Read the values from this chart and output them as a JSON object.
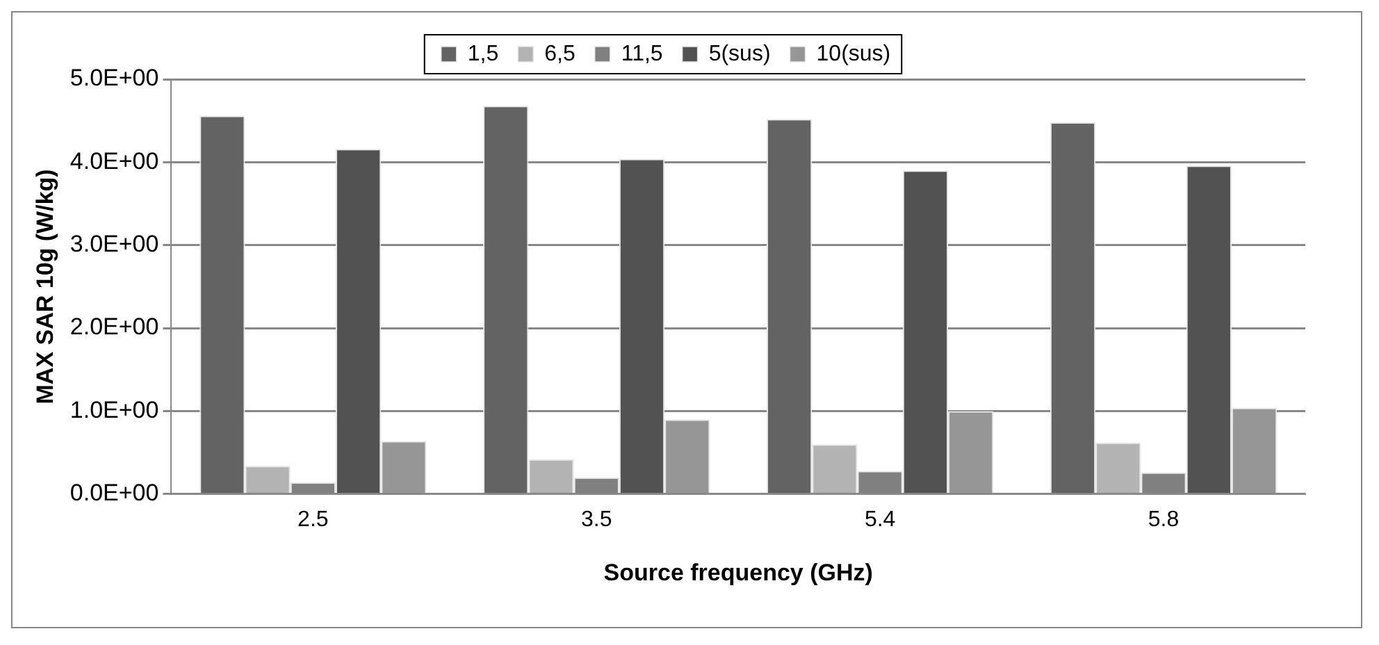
{
  "chart_data": {
    "type": "bar",
    "xlabel": "Source frequency (GHz)",
    "ylabel": "MAX SAR 10g (W/kg)",
    "categories": [
      "2.5",
      "3.5",
      "5.4",
      "5.8"
    ],
    "series": [
      {
        "name": "1,5",
        "color": "#636363",
        "values": [
          4.56,
          4.68,
          4.52,
          4.48
        ]
      },
      {
        "name": "6,5",
        "color": "#b3b3b3",
        "values": [
          0.34,
          0.42,
          0.6,
          0.62
        ]
      },
      {
        "name": "11,5",
        "color": "#808080",
        "values": [
          0.14,
          0.2,
          0.28,
          0.26
        ]
      },
      {
        "name": "5(sus)",
        "color": "#525252",
        "values": [
          4.16,
          4.04,
          3.9,
          3.96
        ]
      },
      {
        "name": "10(sus)",
        "color": "#969696",
        "values": [
          0.64,
          0.9,
          1.0,
          1.04
        ]
      }
    ],
    "ylim": [
      0,
      5
    ],
    "yticks": [
      {
        "value": 0,
        "label": "0.0E+00"
      },
      {
        "value": 1,
        "label": "1.0E+00"
      },
      {
        "value": 2,
        "label": "2.0E+00"
      },
      {
        "value": 3,
        "label": "3.0E+00"
      },
      {
        "value": 4,
        "label": "4.0E+00"
      },
      {
        "value": 5,
        "label": "5.0E+00"
      }
    ],
    "grid": "y",
    "legend": "top"
  }
}
